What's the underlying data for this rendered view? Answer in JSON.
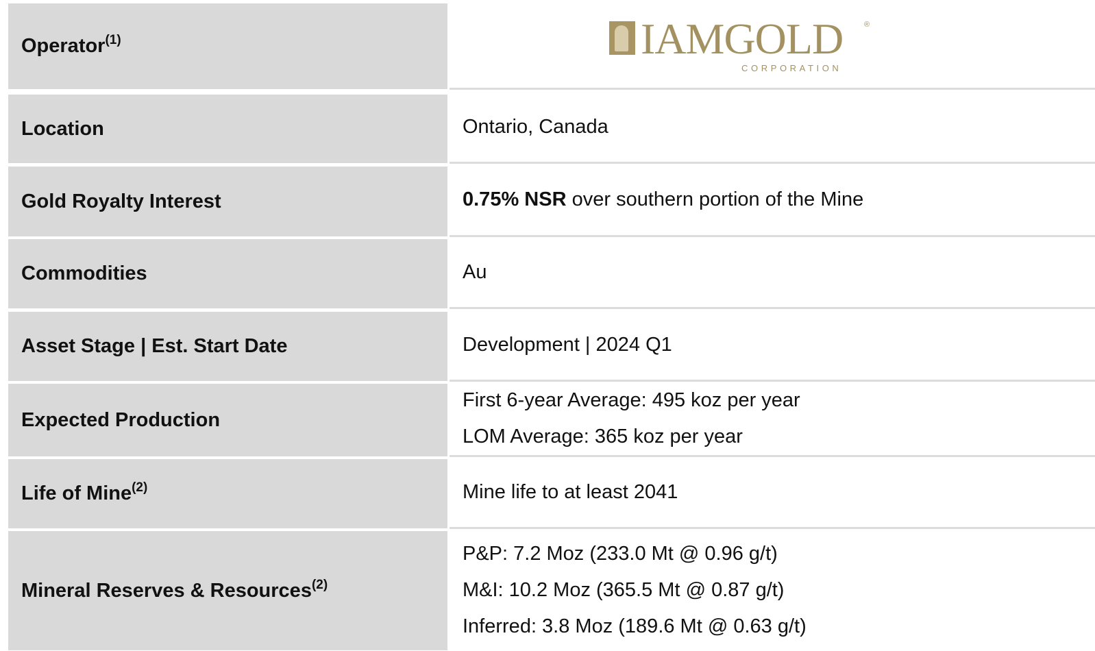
{
  "table": {
    "rows": [
      {
        "label": "Operator",
        "note": "(1)",
        "logo": {
          "name": "IAMGOLD",
          "mark": "®",
          "subtitle": "CORPORATION"
        }
      },
      {
        "label": "Location",
        "lines": [
          "Ontario, Canada"
        ]
      },
      {
        "label": "Gold Royalty Interest",
        "emphasis": "0.75% NSR",
        "lines": [
          "over southern portion of the Mine"
        ]
      },
      {
        "label": "Commodities",
        "lines": [
          "Au"
        ]
      },
      {
        "label": "Asset Stage | Est. Start Date",
        "lines": [
          "Development | 2024 Q1"
        ]
      },
      {
        "label": "Expected Production",
        "lines": [
          "First 6-year Average: 495 koz per year",
          "LOM Average: 365 koz per year"
        ]
      },
      {
        "label": "Life of Mine",
        "note": "(2)",
        "lines": [
          "Mine life to at least 2041"
        ]
      },
      {
        "label": "Mineral Reserves & Resources",
        "note": "(2)",
        "lines": [
          "P&P: 7.2 Moz (233.0 Mt @ 0.96 g/t)",
          "M&I: 10.2 Moz (365.5 Mt @ 0.87 g/t)",
          "Inferred: 3.8 Moz (189.6 Mt @ 0.63 g/t)"
        ]
      }
    ]
  }
}
